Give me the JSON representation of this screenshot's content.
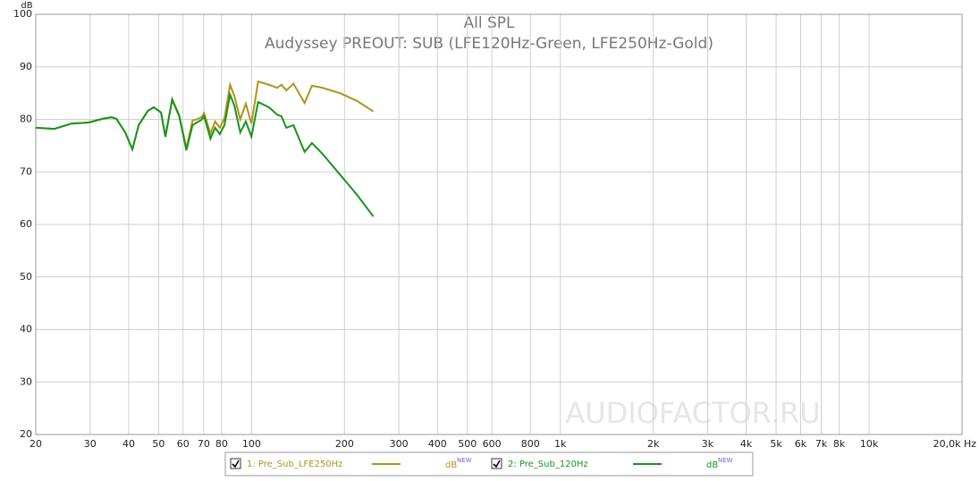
{
  "chart_data": {
    "type": "line",
    "title": "All SPL",
    "subtitle": "Audyssey PREOUT: SUB (LFE120Hz-Green, LFE250Hz-Gold)",
    "y_label": "dB",
    "watermark": "AUDIOFACTOR.RU",
    "legend_unit": "dB",
    "legend_unit_tag": "NEW",
    "x_scale": "log",
    "grid": true,
    "legend": "bottom",
    "xlim": [
      20,
      20000
    ],
    "ylim": [
      20,
      100
    ],
    "yticks": [
      20,
      30,
      40,
      50,
      60,
      70,
      80,
      90,
      100
    ],
    "xticks": [
      20,
      30,
      40,
      50,
      60,
      70,
      80,
      100,
      200,
      300,
      400,
      500,
      600,
      800,
      {
        "value": 1000,
        "label": "1k"
      },
      {
        "value": 2000,
        "label": "2k"
      },
      {
        "value": 3000,
        "label": "3k"
      },
      {
        "value": 4000,
        "label": "4k"
      },
      {
        "value": 5000,
        "label": "5k"
      },
      {
        "value": 6000,
        "label": "6k"
      },
      {
        "value": 7000,
        "label": "7k"
      },
      {
        "value": 8000,
        "label": "8k"
      },
      {
        "value": 10000,
        "label": "10k"
      },
      {
        "value": 20000,
        "label": "20,0k Hz"
      }
    ],
    "x": [
      20,
      23,
      26.1,
      29.7,
      32.9,
      35.2,
      36.5,
      39,
      41.1,
      43.1,
      46.1,
      48.2,
      50.9,
      52.6,
      55.3,
      58.3,
      61.5,
      64.4,
      66.5,
      68.8,
      70.2,
      73.6,
      76.2,
      78.9,
      81.7,
      85.2,
      88,
      91.9,
      95.8,
      99.9,
      105,
      113.8,
      121,
      125,
      129.6,
      136.7,
      148.5,
      156.9,
      169.9,
      193.3,
      219.8,
      248
    ],
    "series": [
      {
        "name": "1: Pre_Sub_LFE250Hz",
        "color": "#b2921c",
        "values": [
          78.4,
          78.2,
          79.2,
          79.4,
          80.1,
          80.4,
          80.1,
          77.5,
          74.3,
          78.9,
          81.6,
          82.3,
          81.3,
          76.7,
          83.9,
          80.8,
          74.5,
          79.8,
          80,
          80.4,
          81.2,
          77.3,
          79.6,
          78.4,
          80.2,
          86.6,
          84.4,
          80,
          83,
          79.2,
          87.2,
          86.6,
          86,
          86.6,
          85.5,
          86.8,
          83.1,
          86.4,
          86,
          85,
          83.5,
          81.5
        ]
      },
      {
        "name": "2: Pre_Sub_120Hz",
        "color": "#16951a",
        "values": [
          78.4,
          78.2,
          79.2,
          79.4,
          80.1,
          80.4,
          80.1,
          77.5,
          74.3,
          78.9,
          81.6,
          82.3,
          81.3,
          76.7,
          83.7,
          80.6,
          74.1,
          78.9,
          79.4,
          79.9,
          80.6,
          76.3,
          78.4,
          77.2,
          78.9,
          84.7,
          82.6,
          77.5,
          79.6,
          76.7,
          83.3,
          82.3,
          80.9,
          80.6,
          78.4,
          78.9,
          73.8,
          75.5,
          73.4,
          69.5,
          65.6,
          61.5
        ]
      }
    ]
  }
}
